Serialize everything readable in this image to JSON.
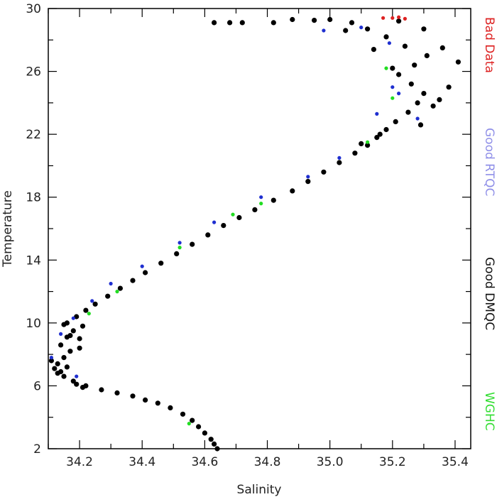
{
  "chart_data": {
    "type": "scatter",
    "xlabel": "Salinity",
    "ylabel": "Temperature",
    "xlim": [
      34.1,
      35.45
    ],
    "ylim": [
      2,
      30
    ],
    "x_ticks": [
      "34.2",
      "34.4",
      "34.6",
      "34.8",
      "35.0",
      "35.2",
      "35.4"
    ],
    "y_ticks": [
      "2",
      "6",
      "10",
      "14",
      "18",
      "22",
      "26",
      "30"
    ],
    "grid": false,
    "legend_placement": "right, vertical text",
    "series": [
      {
        "name": "Good DMQC",
        "color": "#000000",
        "points": [
          [
            34.64,
            2.0
          ],
          [
            34.63,
            2.3
          ],
          [
            34.62,
            2.6
          ],
          [
            34.6,
            3.0
          ],
          [
            34.58,
            3.4
          ],
          [
            34.56,
            3.8
          ],
          [
            34.53,
            4.2
          ],
          [
            34.49,
            4.6
          ],
          [
            34.45,
            4.9
          ],
          [
            34.41,
            5.1
          ],
          [
            34.37,
            5.35
          ],
          [
            34.32,
            5.55
          ],
          [
            34.27,
            5.75
          ],
          [
            34.22,
            6.0
          ],
          [
            34.18,
            6.3
          ],
          [
            34.15,
            6.6
          ],
          [
            34.14,
            6.9
          ],
          [
            34.12,
            7.1
          ],
          [
            34.13,
            7.4
          ],
          [
            34.15,
            7.8
          ],
          [
            34.17,
            8.2
          ],
          [
            34.14,
            8.6
          ],
          [
            34.16,
            9.1
          ],
          [
            34.18,
            9.5
          ],
          [
            34.15,
            9.9
          ],
          [
            34.19,
            10.4
          ],
          [
            34.22,
            10.8
          ],
          [
            34.25,
            11.2
          ],
          [
            34.29,
            11.7
          ],
          [
            34.33,
            12.2
          ],
          [
            34.37,
            12.7
          ],
          [
            34.41,
            13.2
          ],
          [
            34.46,
            13.8
          ],
          [
            34.51,
            14.4
          ],
          [
            34.56,
            15.0
          ],
          [
            34.61,
            15.6
          ],
          [
            34.66,
            16.2
          ],
          [
            34.71,
            16.7
          ],
          [
            34.76,
            17.2
          ],
          [
            34.82,
            17.8
          ],
          [
            34.88,
            18.4
          ],
          [
            34.93,
            19.0
          ],
          [
            34.98,
            19.6
          ],
          [
            35.03,
            20.2
          ],
          [
            35.08,
            20.8
          ],
          [
            35.12,
            21.3
          ],
          [
            35.15,
            21.8
          ],
          [
            35.18,
            22.3
          ],
          [
            35.21,
            22.8
          ],
          [
            35.25,
            23.4
          ],
          [
            35.28,
            24.0
          ],
          [
            35.3,
            24.6
          ],
          [
            35.26,
            25.2
          ],
          [
            35.22,
            25.8
          ],
          [
            35.27,
            26.4
          ],
          [
            35.31,
            27.0
          ],
          [
            35.24,
            27.6
          ],
          [
            35.18,
            28.2
          ],
          [
            35.12,
            28.7
          ],
          [
            35.07,
            29.1
          ],
          [
            35.0,
            29.3
          ],
          [
            34.95,
            29.25
          ],
          [
            34.88,
            29.3
          ],
          [
            34.82,
            29.1
          ],
          [
            34.72,
            29.1
          ],
          [
            34.68,
            29.1
          ],
          [
            34.63,
            29.1
          ],
          [
            35.35,
            24.2
          ],
          [
            35.38,
            25.0
          ],
          [
            35.33,
            23.8
          ],
          [
            35.41,
            26.6
          ],
          [
            35.29,
            22.6
          ],
          [
            35.16,
            22.0
          ],
          [
            35.1,
            21.4
          ],
          [
            35.36,
            27.5
          ],
          [
            35.2,
            26.2
          ],
          [
            35.14,
            27.4
          ],
          [
            35.05,
            28.6
          ],
          [
            35.22,
            29.2
          ],
          [
            35.3,
            28.7
          ],
          [
            34.21,
            5.9
          ],
          [
            34.19,
            6.1
          ],
          [
            34.13,
            6.8
          ],
          [
            34.16,
            7.2
          ],
          [
            34.11,
            7.6
          ],
          [
            34.2,
            8.4
          ],
          [
            34.17,
            9.2
          ],
          [
            34.21,
            9.8
          ],
          [
            34.2,
            9.0
          ],
          [
            34.16,
            10.0
          ]
        ]
      },
      {
        "name": "Good RTQC",
        "color": "#1f2fd0",
        "points": [
          [
            34.11,
            7.8
          ],
          [
            34.14,
            9.3
          ],
          [
            34.18,
            10.3
          ],
          [
            34.24,
            11.4
          ],
          [
            34.3,
            12.5
          ],
          [
            34.4,
            13.6
          ],
          [
            34.52,
            15.1
          ],
          [
            34.63,
            16.4
          ],
          [
            34.78,
            18.0
          ],
          [
            34.93,
            19.3
          ],
          [
            35.03,
            20.5
          ],
          [
            35.15,
            23.3
          ],
          [
            35.22,
            24.6
          ],
          [
            35.19,
            27.8
          ],
          [
            35.1,
            28.8
          ],
          [
            34.98,
            28.6
          ],
          [
            35.2,
            25.0
          ],
          [
            35.28,
            23.0
          ],
          [
            34.19,
            6.6
          ]
        ]
      },
      {
        "name": "WGHC",
        "color": "#22dd22",
        "points": [
          [
            34.55,
            3.6
          ],
          [
            34.23,
            10.6
          ],
          [
            34.32,
            12.0
          ],
          [
            34.52,
            14.8
          ],
          [
            34.69,
            16.9
          ],
          [
            34.78,
            17.6
          ],
          [
            35.2,
            24.3
          ],
          [
            35.18,
            26.2
          ],
          [
            35.12,
            21.5
          ]
        ]
      },
      {
        "name": "Bad Data",
        "color": "#dd2222",
        "points": [
          [
            35.2,
            29.4
          ],
          [
            35.22,
            29.45
          ],
          [
            35.24,
            29.35
          ],
          [
            35.17,
            29.4
          ]
        ]
      }
    ]
  },
  "legend": {
    "bad_data": "Bad Data",
    "good_rtqc": "Good RTQC",
    "good_dmqc": "Good DMQC",
    "wghc": "WGHC"
  }
}
